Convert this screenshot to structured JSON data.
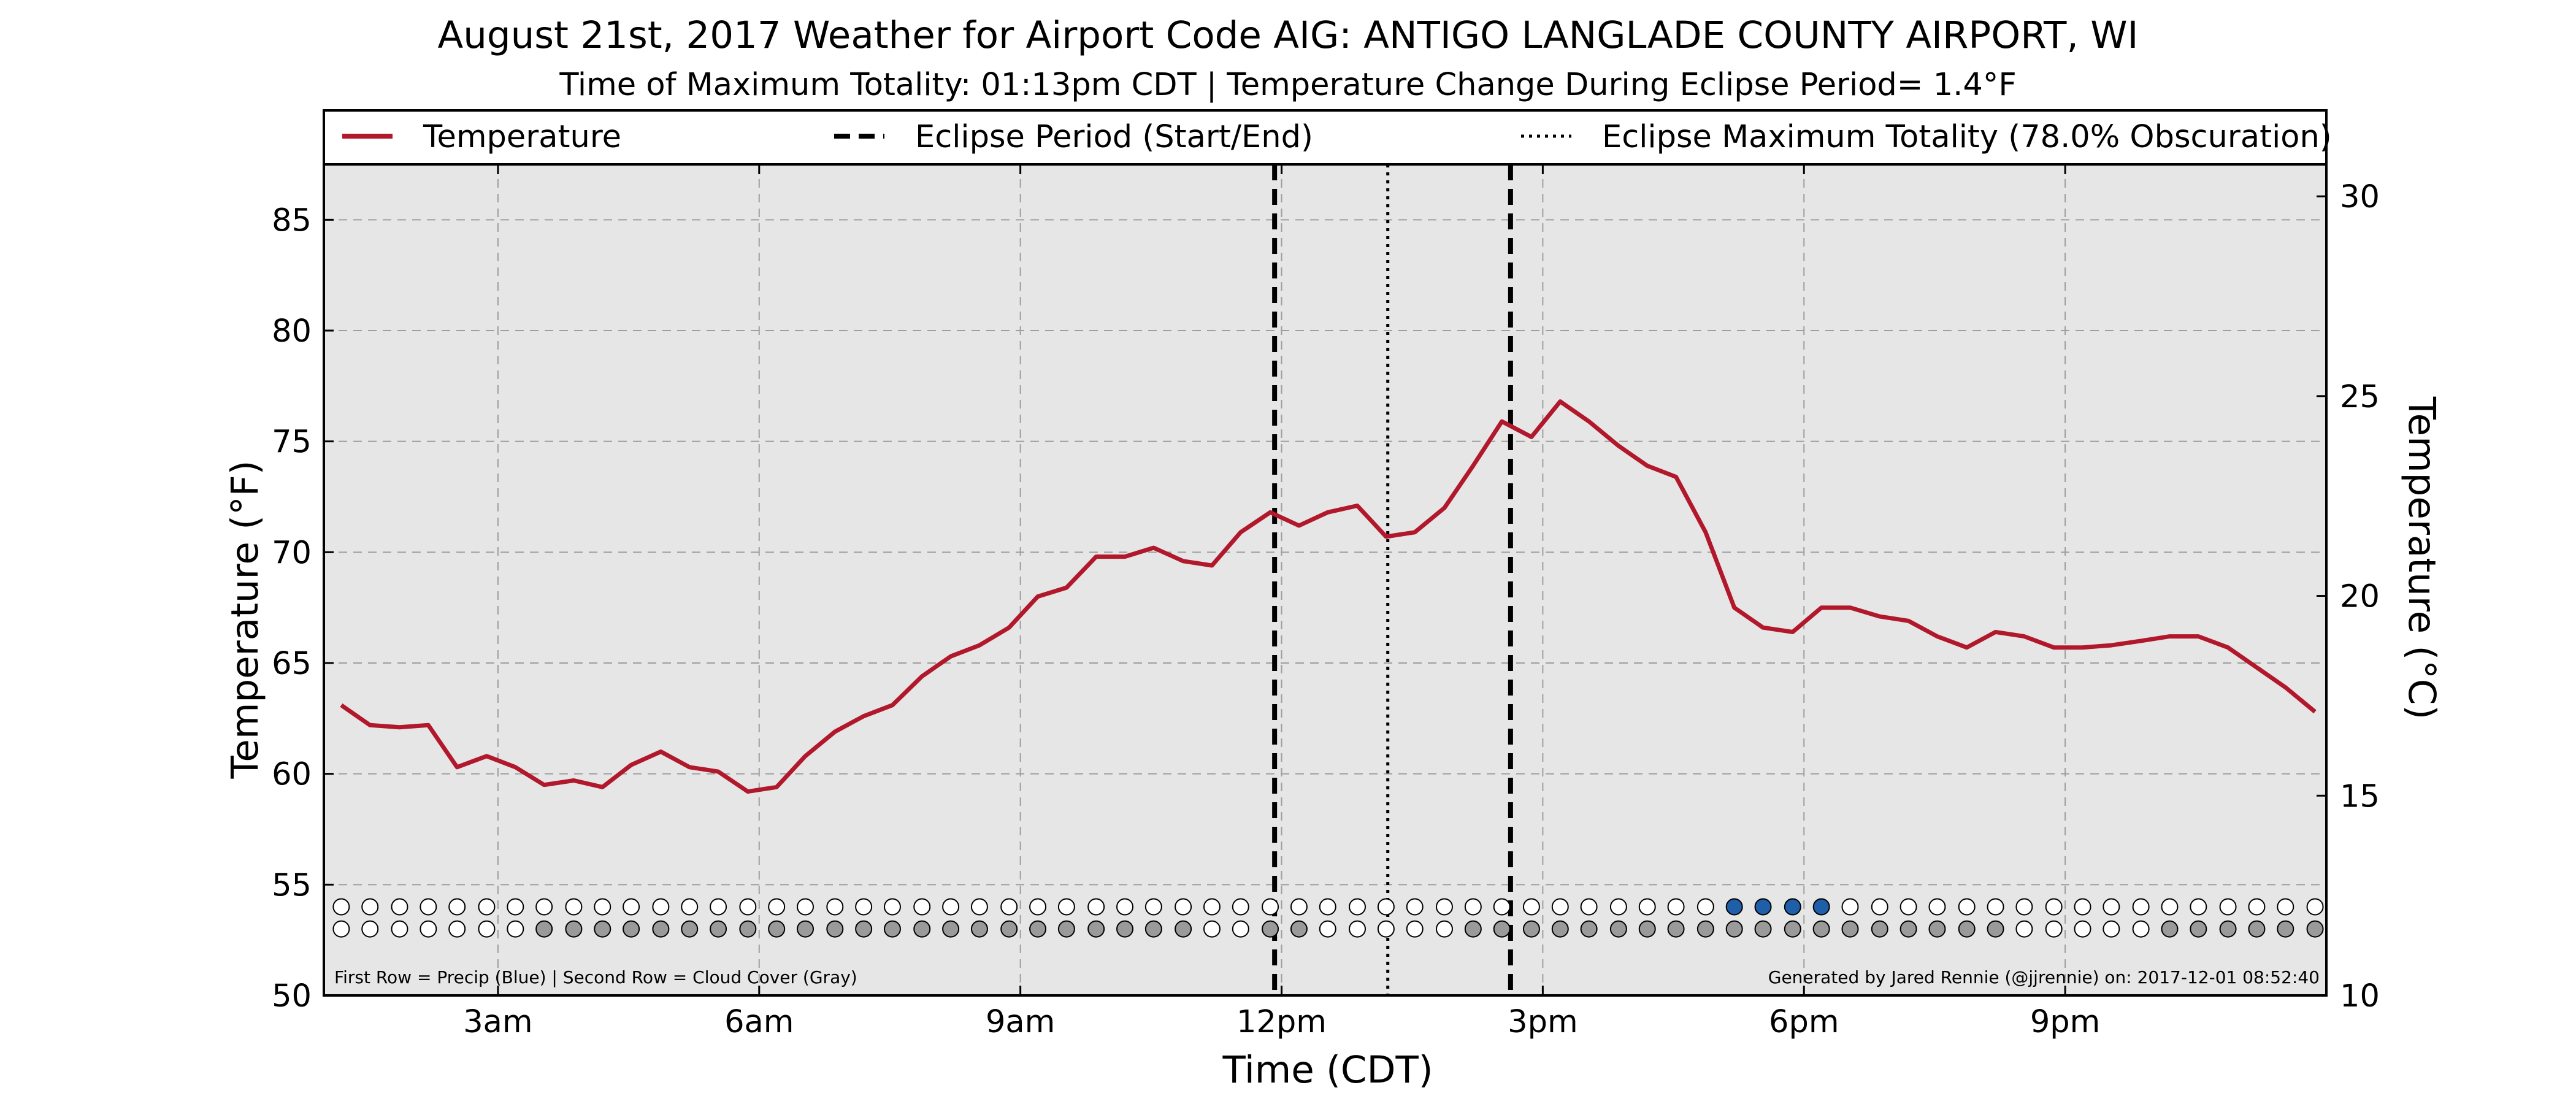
{
  "chart_data": {
    "type": "line",
    "title": "August 21st, 2017 Weather for Airport Code AIG: ANTIGO LANGLADE COUNTY AIRPORT, WI",
    "subtitle": "Time of Maximum Totality: 01:13pm CDT | Temperature Change During Eclipse Period= 1.4°F",
    "xlabel": "Time (CDT)",
    "ylabel_left": "Temperature (°F)",
    "ylabel_right": "Temperature (°C)",
    "xlim": [
      1.0,
      24.0
    ],
    "ylim": [
      50,
      87.5
    ],
    "ylim_celsius": [
      10,
      30.8
    ],
    "x_ticks": [
      {
        "value": 3,
        "label": "3am"
      },
      {
        "value": 6,
        "label": "6am"
      },
      {
        "value": 9,
        "label": "9am"
      },
      {
        "value": 12,
        "label": "12pm"
      },
      {
        "value": 15,
        "label": "3pm"
      },
      {
        "value": 18,
        "label": "6pm"
      },
      {
        "value": 21,
        "label": "9pm"
      }
    ],
    "y_ticks_left": [
      50,
      55,
      60,
      65,
      70,
      75,
      80,
      85
    ],
    "y_ticks_right": [
      10,
      15,
      20,
      25,
      30
    ],
    "grid": true,
    "legend_position": "top",
    "legend": [
      {
        "label": "Temperature",
        "style": "solid",
        "color": "#b2182b"
      },
      {
        "label": "Eclipse Period (Start/End)",
        "style": "dashed",
        "color": "#000000"
      },
      {
        "label": "Eclipse Maximum Totality (78.0% Obscuration)",
        "style": "dotted",
        "color": "#000000"
      }
    ],
    "series": [
      {
        "name": "Temperature",
        "color": "#b2182b",
        "x": [
          1.2,
          1.53,
          1.87,
          2.2,
          2.53,
          2.87,
          3.2,
          3.53,
          3.87,
          4.2,
          4.53,
          4.87,
          5.2,
          5.53,
          5.87,
          6.2,
          6.53,
          6.87,
          7.2,
          7.53,
          7.87,
          8.2,
          8.53,
          8.87,
          9.2,
          9.53,
          9.87,
          10.2,
          10.53,
          10.87,
          11.2,
          11.53,
          11.87,
          12.2,
          12.53,
          12.87,
          13.2,
          13.53,
          13.87,
          14.2,
          14.53,
          14.87,
          15.2,
          15.53,
          15.87,
          16.2,
          16.53,
          16.87,
          17.2,
          17.53,
          17.87,
          18.2,
          18.53,
          18.87,
          19.2,
          19.53,
          19.87,
          20.2,
          20.53,
          20.87,
          21.2,
          21.53,
          21.87,
          22.2,
          22.53,
          22.87,
          23.2,
          23.53,
          23.87
        ],
        "values": [
          63.1,
          62.2,
          62.1,
          62.2,
          60.3,
          60.8,
          60.3,
          59.5,
          59.7,
          59.4,
          60.4,
          61.0,
          60.3,
          60.1,
          59.2,
          59.4,
          60.8,
          61.9,
          62.6,
          63.1,
          64.4,
          65.3,
          65.8,
          66.6,
          68.0,
          68.4,
          69.8,
          69.8,
          70.2,
          69.6,
          69.4,
          70.9,
          71.8,
          71.2,
          71.8,
          72.1,
          70.7,
          70.9,
          72.0,
          73.9,
          75.9,
          75.2,
          76.8,
          75.9,
          74.8,
          73.9,
          73.4,
          70.9,
          67.5,
          66.6,
          66.4,
          67.5,
          67.5,
          67.1,
          66.9,
          66.2,
          65.7,
          66.4,
          66.2,
          65.7,
          65.7,
          65.8,
          66.0,
          66.2,
          66.2,
          65.7,
          64.8,
          63.9,
          62.8
        ]
      }
    ],
    "eclipse_start": 11.92,
    "eclipse_max": 13.22,
    "eclipse_end": 14.63,
    "marker_x": [
      1.2,
      1.53,
      1.87,
      2.2,
      2.53,
      2.87,
      3.2,
      3.53,
      3.87,
      4.2,
      4.53,
      4.87,
      5.2,
      5.53,
      5.87,
      6.2,
      6.53,
      6.87,
      7.2,
      7.53,
      7.87,
      8.2,
      8.53,
      8.87,
      9.2,
      9.53,
      9.87,
      10.2,
      10.53,
      10.87,
      11.2,
      11.53,
      11.87,
      12.2,
      12.53,
      12.87,
      13.2,
      13.53,
      13.87,
      14.2,
      14.53,
      14.87,
      15.2,
      15.53,
      15.87,
      16.2,
      16.53,
      16.87,
      17.2,
      17.53,
      17.87,
      18.2,
      18.53,
      18.87,
      19.2,
      19.53,
      19.87,
      20.2,
      20.53,
      20.87,
      21.2,
      21.53,
      21.87,
      22.2,
      22.53,
      22.87,
      23.2,
      23.53,
      23.87
    ],
    "precip_row": [
      0,
      0,
      0,
      0,
      0,
      0,
      0,
      0,
      0,
      0,
      0,
      0,
      0,
      0,
      0,
      0,
      0,
      0,
      0,
      0,
      0,
      0,
      0,
      0,
      0,
      0,
      0,
      0,
      0,
      0,
      0,
      0,
      0,
      0,
      0,
      0,
      0,
      0,
      0,
      0,
      0,
      0,
      0,
      0,
      0,
      0,
      0,
      0,
      1,
      1,
      1,
      1,
      0,
      0,
      0,
      0,
      0,
      0,
      0,
      0,
      0,
      0,
      0,
      0,
      0,
      0,
      0,
      0,
      0
    ],
    "cloud_row": [
      0,
      0,
      0,
      0,
      0,
      0,
      0,
      1,
      1,
      1,
      1,
      1,
      1,
      1,
      1,
      1,
      1,
      1,
      1,
      1,
      1,
      1,
      1,
      1,
      1,
      1,
      1,
      1,
      1,
      1,
      0,
      0,
      1,
      1,
      0,
      0,
      0,
      0,
      0,
      1,
      1,
      1,
      1,
      1,
      1,
      1,
      1,
      1,
      1,
      1,
      1,
      1,
      1,
      1,
      1,
      1,
      1,
      1,
      0,
      0,
      0,
      0,
      0,
      1,
      1,
      1,
      1,
      1,
      1
    ],
    "precip_color": "#1f5ea8",
    "cloud_color": "#9a9a9a",
    "footer_left": "First Row = Precip (Blue) | Second Row = Cloud Cover (Gray)",
    "footer_right": "Generated by Jared Rennie (@jjrennie) on: 2017-12-01 08:52:40"
  }
}
